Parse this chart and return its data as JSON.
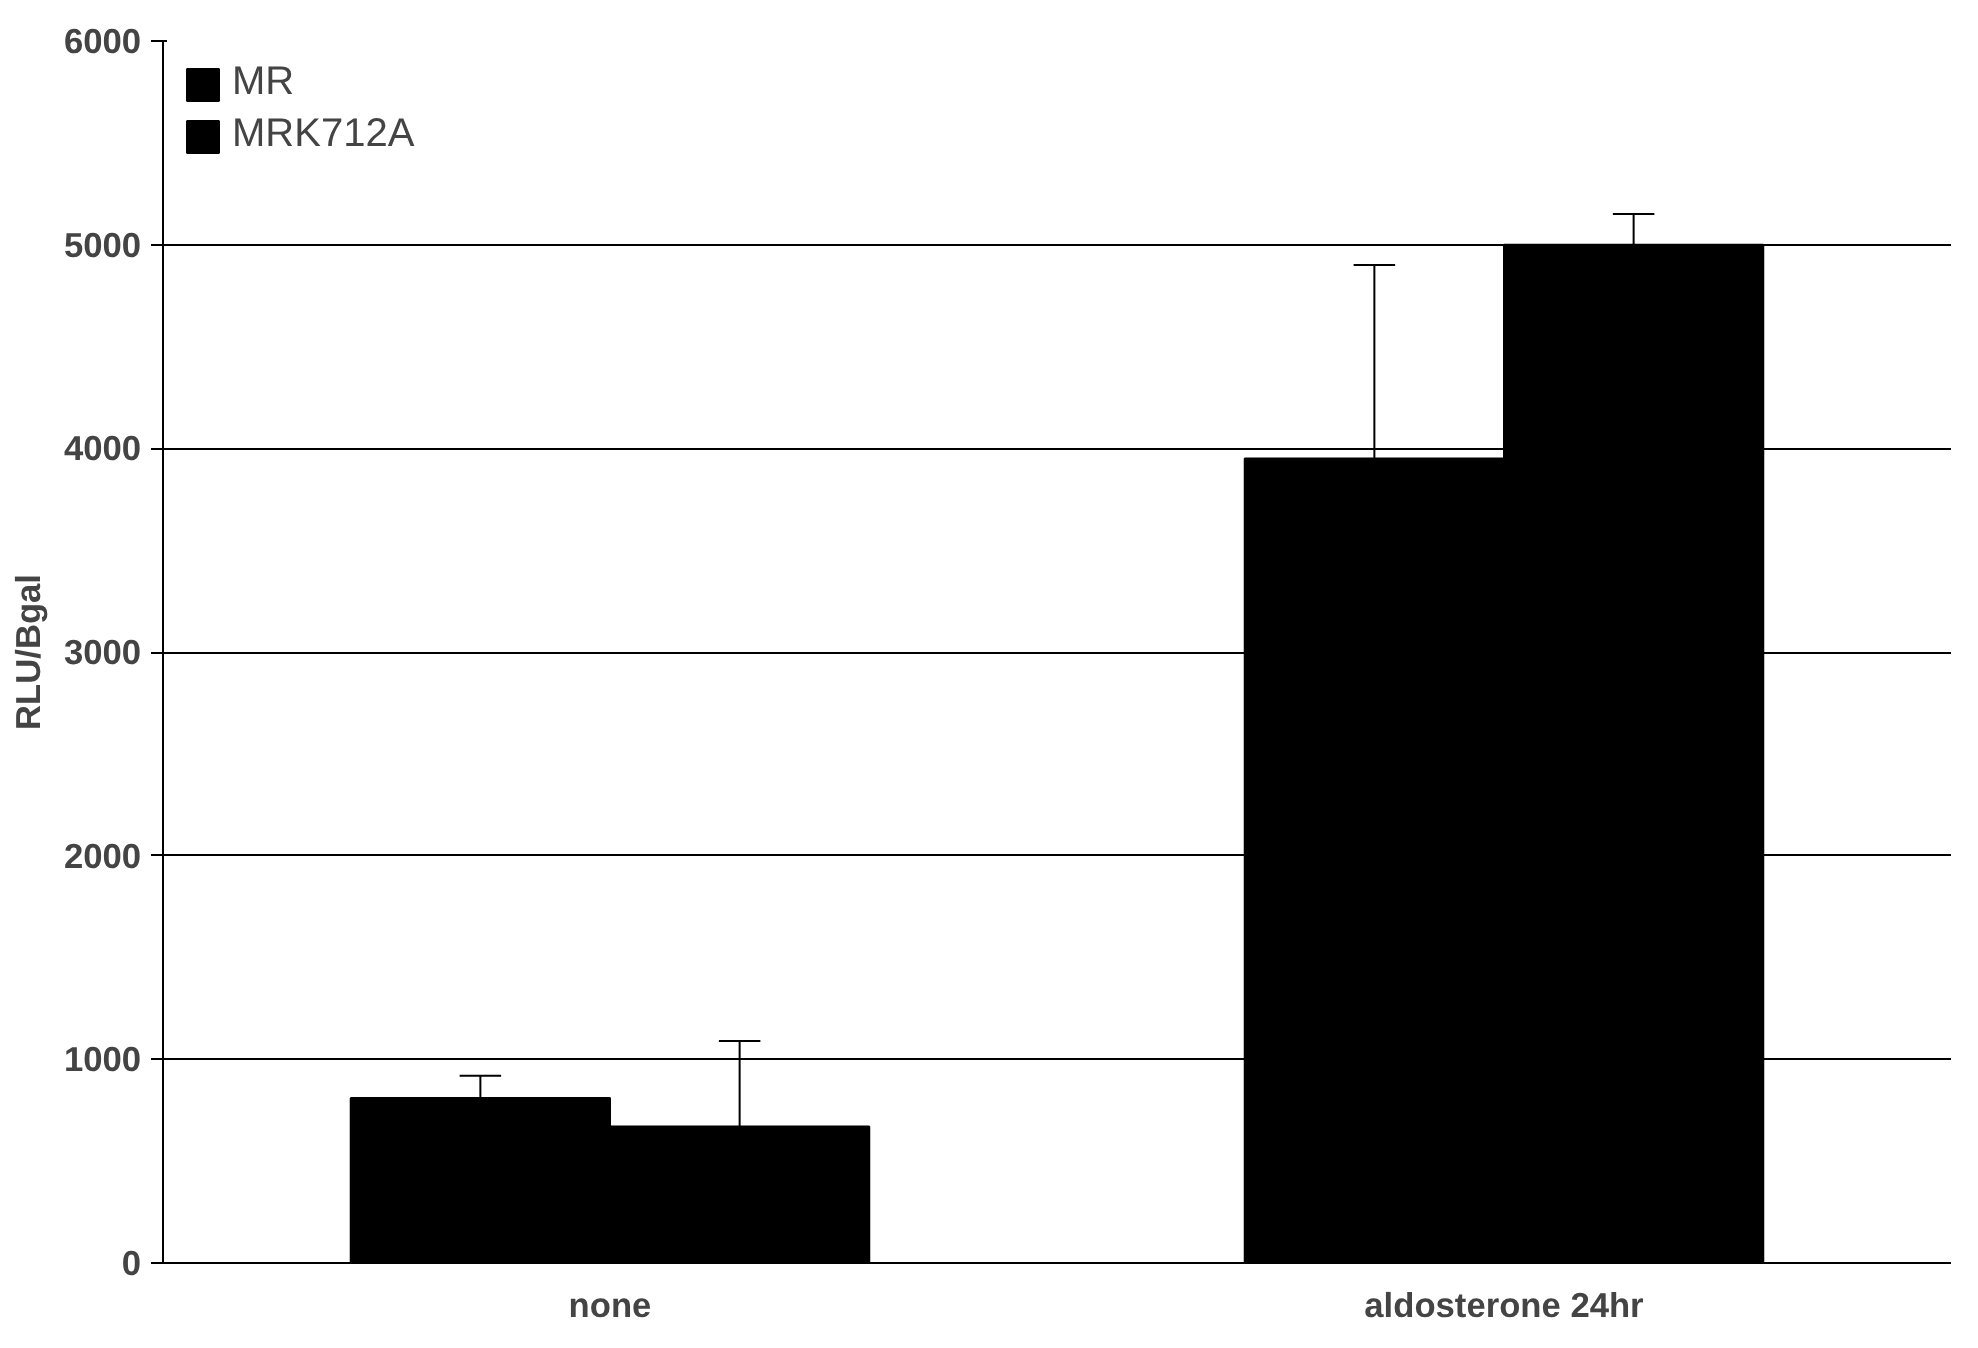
{
  "chart_data": {
    "type": "bar",
    "ylabel": "RLU/Bgal",
    "categories": [
      "none",
      "aldosterone 24hr"
    ],
    "series": [
      {
        "name": "MR",
        "color": "#000000",
        "values": [
          810,
          3950
        ],
        "errors": [
          [
            810,
            920
          ],
          [
            3950,
            4900
          ]
        ]
      },
      {
        "name": "MRK712A",
        "color": "#000000",
        "values": [
          670,
          5000
        ],
        "errors": [
          [
            670,
            1090
          ],
          [
            5000,
            5150
          ]
        ]
      }
    ],
    "ylim": [
      0,
      6000
    ],
    "yticks": [
      0,
      1000,
      2000,
      3000,
      4000,
      5000,
      6000
    ],
    "grid": "y",
    "legend": "top left"
  }
}
